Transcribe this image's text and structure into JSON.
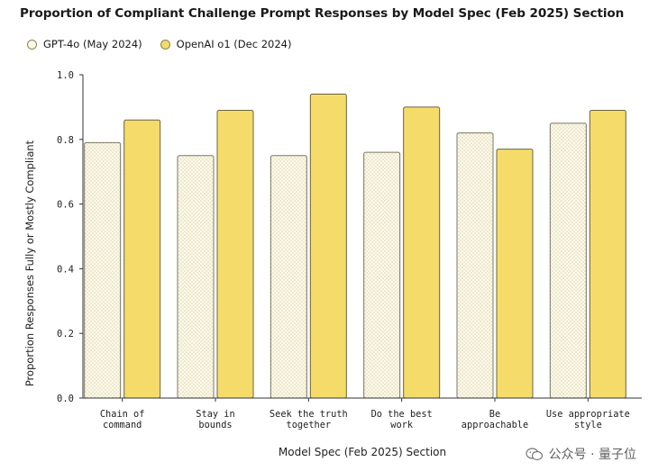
{
  "chart_data": {
    "type": "bar",
    "title": "Proportion of Compliant Challenge Prompt Responses by Model Spec (Feb 2025) Section",
    "xlabel": "Model Spec (Feb 2025) Section",
    "ylabel": "Proportion Responses Fully or Mostly Compliant",
    "ylim": [
      0,
      1.0
    ],
    "yticks": [
      "0.0",
      "0.2",
      "0.4",
      "0.6",
      "0.8",
      "1.0"
    ],
    "legend_position": "top-left",
    "grid": false,
    "categories": [
      [
        "Chain of",
        "command"
      ],
      [
        "Stay in",
        "bounds"
      ],
      [
        "Seek the truth",
        "together"
      ],
      [
        "Do the best",
        "work"
      ],
      [
        "Be",
        "approachable"
      ],
      [
        "Use appropriate",
        "style"
      ]
    ],
    "series": [
      {
        "name": "GPT-4o (May 2024)",
        "color": "#fbf9ec",
        "values": [
          0.79,
          0.75,
          0.75,
          0.76,
          0.82,
          0.85
        ]
      },
      {
        "name": "OpenAI o1 (Dec 2024)",
        "color": "#f5dc6a",
        "values": [
          0.86,
          0.89,
          0.94,
          0.9,
          0.77,
          0.89
        ]
      }
    ]
  },
  "watermark": {
    "text": "公众号 · 量子位",
    "icon": "wechat-icon"
  }
}
